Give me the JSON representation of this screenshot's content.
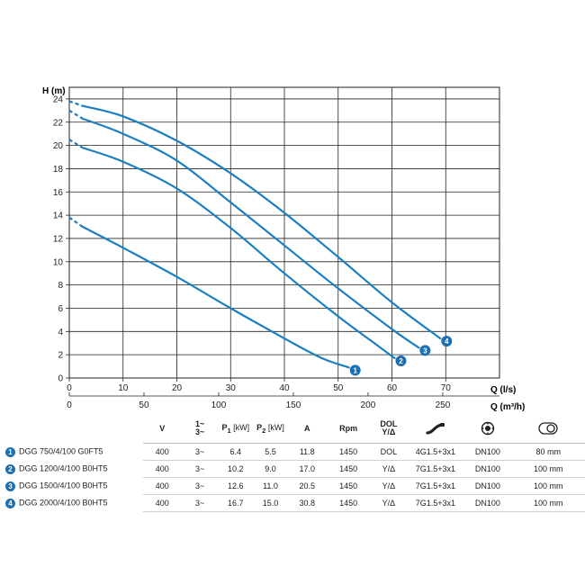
{
  "chart_data": {
    "type": "line",
    "ylabel": "H (m)",
    "xlabel": "Q (l/s)",
    "xlabel2": "Q (m³/h)",
    "xlim": [
      0,
      80
    ],
    "ylim": [
      0,
      25
    ],
    "xticks": [
      0,
      10,
      20,
      30,
      40,
      50,
      60,
      70
    ],
    "yticks": [
      0,
      2,
      4,
      6,
      8,
      10,
      12,
      14,
      16,
      18,
      20,
      22,
      24
    ],
    "xticks2": [
      0,
      50,
      100,
      150,
      200,
      250
    ],
    "series": [
      {
        "name": "1",
        "color": "#1b7fc1",
        "points": [
          [
            0,
            13.8
          ],
          [
            2.5,
            13.0
          ],
          [
            10,
            11.2
          ],
          [
            20,
            8.7
          ],
          [
            30,
            6.0
          ],
          [
            40,
            3.4
          ],
          [
            47,
            1.7
          ],
          [
            52,
            0.9
          ]
        ]
      },
      {
        "name": "2",
        "color": "#1b7fc1",
        "points": [
          [
            0,
            20.5
          ],
          [
            2.5,
            19.8
          ],
          [
            10,
            18.6
          ],
          [
            20,
            16.3
          ],
          [
            30,
            12.9
          ],
          [
            40,
            9.0
          ],
          [
            50,
            5.3
          ],
          [
            57,
            2.9
          ],
          [
            60.5,
            1.7
          ]
        ]
      },
      {
        "name": "3",
        "color": "#1b7fc1",
        "points": [
          [
            0,
            23.0
          ],
          [
            2.5,
            22.3
          ],
          [
            10,
            21.0
          ],
          [
            20,
            18.7
          ],
          [
            30,
            15.1
          ],
          [
            40,
            11.4
          ],
          [
            50,
            7.7
          ],
          [
            60,
            4.2
          ],
          [
            65,
            2.6
          ]
        ]
      },
      {
        "name": "4",
        "color": "#1b7fc1",
        "points": [
          [
            0,
            23.8
          ],
          [
            2.5,
            23.4
          ],
          [
            10,
            22.5
          ],
          [
            20,
            20.4
          ],
          [
            30,
            17.6
          ],
          [
            40,
            14.2
          ],
          [
            50,
            10.4
          ],
          [
            60,
            6.5
          ],
          [
            69,
            3.4
          ]
        ]
      }
    ],
    "dash_until": 2.5
  },
  "table": {
    "headers": {
      "v": "V",
      "phase_top": "1~",
      "phase_bottom": "3~",
      "p1": "P",
      "p1_sub": "1",
      "p1_unit": "[kW]",
      "p2": "P",
      "p2_sub": "2",
      "p2_unit": "[kW]",
      "a": "A",
      "rpm": "Rpm",
      "dol_top": "DOL",
      "dol_bottom": "Y/Δ",
      "cable_icon": "cable-icon",
      "outlet_icon": "outlet-flange-icon",
      "passage_icon": "free-passage-icon"
    },
    "rows": [
      {
        "num": "1",
        "model": "DGG 750/4/100 G0FT5",
        "v": "400",
        "phase": "3~",
        "p1": "6.4",
        "p2": "5.5",
        "a": "11.8",
        "rpm": "1450",
        "dol": "DOL",
        "cable": "4G1.5+3x1",
        "outlet": "DN100",
        "passage": "80 mm"
      },
      {
        "num": "2",
        "model": "DGG 1200/4/100 B0HT5",
        "v": "400",
        "phase": "3~",
        "p1": "10.2",
        "p2": "9.0",
        "a": "17.0",
        "rpm": "1450",
        "dol": "Y/Δ",
        "cable": "7G1.5+3x1",
        "outlet": "DN100",
        "passage": "100 mm"
      },
      {
        "num": "3",
        "model": "DGG 1500/4/100 B0HT5",
        "v": "400",
        "phase": "3~",
        "p1": "12.6",
        "p2": "11.0",
        "a": "20.5",
        "rpm": "1450",
        "dol": "Y/Δ",
        "cable": "7G1.5+3x1",
        "outlet": "DN100",
        "passage": "100 mm"
      },
      {
        "num": "4",
        "model": "DGG 2000/4/100 B0HT5",
        "v": "400",
        "phase": "3~",
        "p1": "16.7",
        "p2": "15.0",
        "a": "30.8",
        "rpm": "1450",
        "dol": "Y/Δ",
        "cable": "7G1.5+3x1",
        "outlet": "DN100",
        "passage": "100 mm"
      }
    ]
  }
}
